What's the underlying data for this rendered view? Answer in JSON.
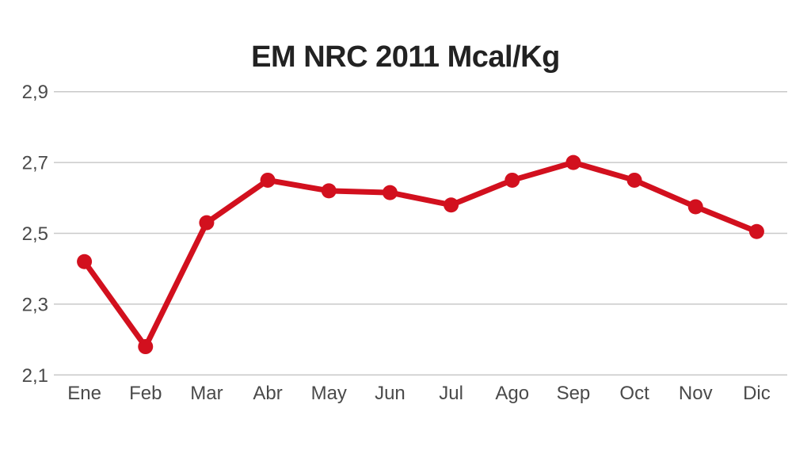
{
  "chart_data": {
    "type": "line",
    "title": "EM NRC 2011 Mcal/Kg",
    "categories": [
      "Ene",
      "Feb",
      "Mar",
      "Abr",
      "May",
      "Jun",
      "Jul",
      "Ago",
      "Sep",
      "Oct",
      "Nov",
      "Dic"
    ],
    "values": [
      2.42,
      2.18,
      2.53,
      2.65,
      2.62,
      2.615,
      2.58,
      2.65,
      2.7,
      2.65,
      2.575,
      2.505
    ],
    "series_name": "EM NRC 2011 Mcal/Kg",
    "xlabel": "",
    "ylabel": "",
    "ylim": [
      2.1,
      2.9
    ],
    "yticks": [
      {
        "value": 2.9,
        "label": "2,9"
      },
      {
        "value": 2.7,
        "label": "2,7"
      },
      {
        "value": 2.5,
        "label": "2,5"
      },
      {
        "value": 2.3,
        "label": "2,3"
      },
      {
        "value": 2.1,
        "label": "2,1"
      }
    ],
    "grid": "horizontal-only",
    "legend": "none",
    "marker": "circle",
    "decimal_separator": ",",
    "colors": {
      "line": "#d2101e",
      "marker": "#d2101e",
      "grid": "#c9c9c9",
      "title": "#222222",
      "tick_label": "#4a4a4a",
      "background": "#ffffff"
    }
  }
}
